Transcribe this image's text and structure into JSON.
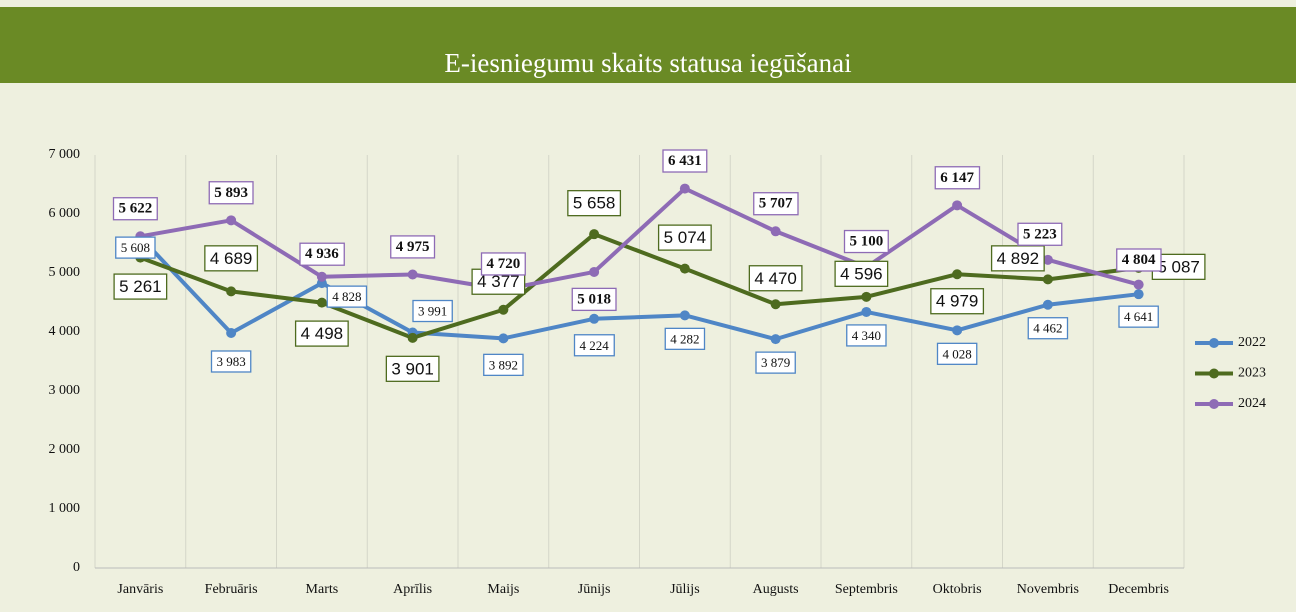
{
  "chart_data": {
    "type": "line",
    "title": "E-iesniegumu skaits statusa iegūšanai",
    "categories": [
      "Janvāris",
      "Februāris",
      "Marts",
      "Aprīlis",
      "Maijs",
      "Jūnijs",
      "Jūlijs",
      "Augusts",
      "Septembris",
      "Oktobris",
      "Novembris",
      "Decembris"
    ],
    "series": [
      {
        "name": "2022",
        "color": "#4f86c6",
        "values": [
          5608,
          3983,
          4828,
          3991,
          3892,
          4224,
          4282,
          3879,
          4340,
          4028,
          4462,
          4641
        ],
        "value_labels": [
          "5 608",
          "3 983",
          "4 828",
          "3 991",
          "3 892",
          "4 224",
          "4 282",
          "3 879",
          "4 340",
          "4 028",
          "4 462",
          "4 641"
        ]
      },
      {
        "name": "2023",
        "color": "#4e6b1f",
        "values": [
          5261,
          4689,
          4498,
          3901,
          4377,
          5658,
          5074,
          4470,
          4596,
          4979,
          4892,
          5087
        ],
        "value_labels": [
          "5 261",
          "4 689",
          "4 498",
          "3 901",
          "4 377",
          "5 658",
          "5 074",
          "4 470",
          "4 596",
          "4 979",
          "4 892",
          "5 087"
        ]
      },
      {
        "name": "2024",
        "color": "#8e6bb5",
        "values": [
          5622,
          5893,
          4936,
          4975,
          4720,
          5018,
          6431,
          5707,
          5100,
          6147,
          5223,
          4804
        ],
        "value_labels": [
          "5 622",
          "5 893",
          "4 936",
          "4 975",
          "4 720",
          "5 018",
          "6 431",
          "5 707",
          "5 100",
          "6 147",
          "5 223",
          "4 804"
        ]
      }
    ],
    "ylim": [
      0,
      7000
    ],
    "yticks": [
      0,
      {
        "value": 1000,
        "label": "1 000"
      },
      {
        "value": 2000,
        "label": "2 000"
      },
      {
        "value": 3000,
        "label": "3 000"
      },
      {
        "value": 4000,
        "label": "4 000"
      },
      {
        "value": 5000,
        "label": "5 000"
      },
      {
        "value": 6000,
        "label": "6 000"
      },
      {
        "value": 7000,
        "label": "7 000"
      }
    ],
    "grid": true,
    "legend": "right"
  }
}
